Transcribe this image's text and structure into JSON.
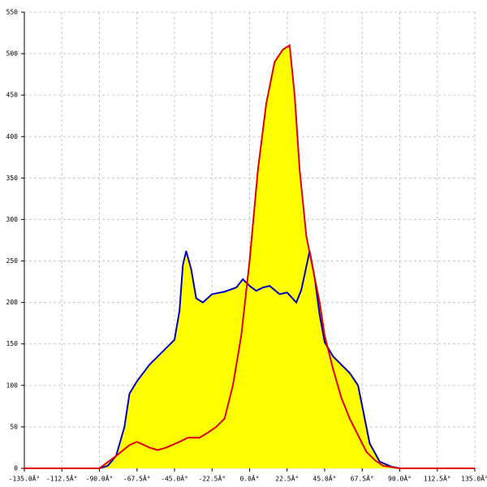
{
  "chart_data": {
    "type": "area",
    "xlim": [
      -135,
      135
    ],
    "ylim": [
      0,
      550
    ],
    "xticks": [
      {
        "value": -135,
        "label": "-135.0Â°"
      },
      {
        "value": -112.5,
        "label": "-112.5Â°"
      },
      {
        "value": -90,
        "label": "-90.0Â°"
      },
      {
        "value": -67.5,
        "label": "-67.5Â°"
      },
      {
        "value": -45,
        "label": "-45.0Â°"
      },
      {
        "value": -22.5,
        "label": "-22.5Â°"
      },
      {
        "value": 0,
        "label": "0.0Â°"
      },
      {
        "value": 22.5,
        "label": "22.5Â°"
      },
      {
        "value": 45,
        "label": "45.0Â°"
      },
      {
        "value": 67.5,
        "label": "67.5Â°"
      },
      {
        "value": 90,
        "label": "90.0Â°"
      },
      {
        "value": 112.5,
        "label": "112.5Â°"
      },
      {
        "value": 135,
        "label": "135.0Â°"
      }
    ],
    "yticks": [
      0,
      50,
      100,
      150,
      200,
      250,
      300,
      350,
      400,
      450,
      500,
      550
    ],
    "grid": true,
    "fill": "#ffff00",
    "series": [
      {
        "color": "#0000c0",
        "x": [
          -90,
          -85,
          -80,
          -75,
          -72,
          -67.5,
          -60,
          -50,
          -45,
          -42,
          -40,
          -38,
          -35,
          -32,
          -28,
          -22.5,
          -15,
          -8,
          -4,
          0,
          4,
          8,
          12,
          18,
          22.5,
          28,
          31,
          36,
          39,
          42,
          45,
          50,
          55,
          60,
          65,
          68,
          72,
          78,
          85,
          90
        ],
        "values": [
          0,
          3,
          15,
          50,
          90,
          105,
          125,
          145,
          155,
          190,
          245,
          262,
          240,
          205,
          200,
          210,
          213,
          218,
          228,
          220,
          214,
          218,
          220,
          210,
          212,
          200,
          215,
          262,
          230,
          185,
          152,
          135,
          125,
          115,
          100,
          70,
          30,
          8,
          2,
          0
        ]
      },
      {
        "color": "#e00000",
        "x": [
          -135,
          -90,
          -80,
          -72,
          -67.5,
          -60,
          -55,
          -50,
          -42,
          -37,
          -30,
          -25,
          -20,
          -15,
          -10,
          -5,
          0,
          5,
          10,
          15,
          20,
          24,
          27,
          30,
          34,
          38,
          42,
          45,
          50,
          55,
          60,
          65,
          70,
          75,
          80,
          90,
          135
        ],
        "values": [
          0,
          0,
          15,
          28,
          32,
          25,
          22,
          25,
          32,
          37,
          37,
          43,
          50,
          60,
          100,
          160,
          250,
          360,
          440,
          490,
          505,
          510,
          450,
          360,
          280,
          240,
          200,
          160,
          120,
          85,
          60,
          40,
          20,
          10,
          3,
          0,
          0
        ]
      }
    ]
  }
}
